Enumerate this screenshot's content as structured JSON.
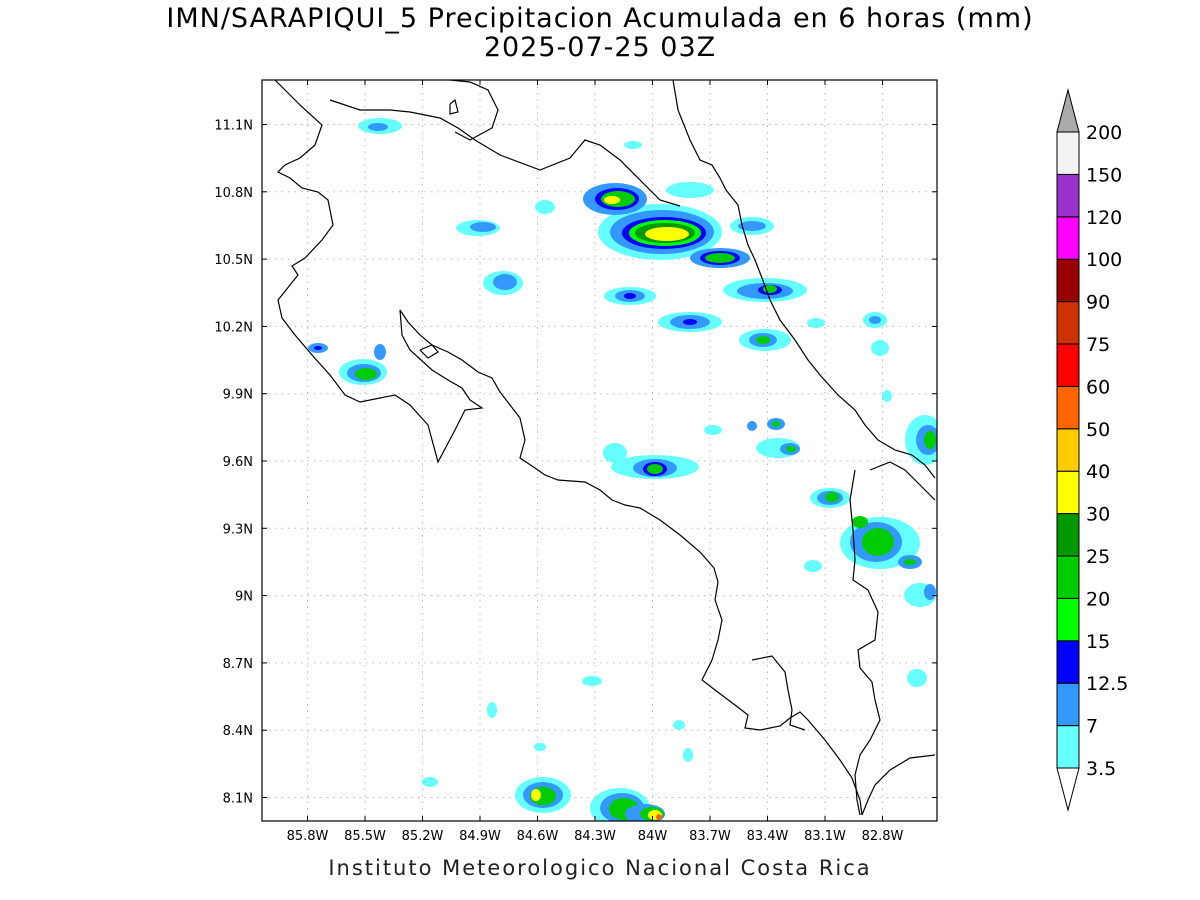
{
  "title_line1": "IMN/SARAPIQUI_5 Precipitacion Acumulada en 6 horas (mm)",
  "title_line2": "2025-07-25 03Z",
  "footer": "Instituto Meteorologico Nacional Costa Rica",
  "map": {
    "lon_range": [
      -86.0,
      -83.0
    ],
    "lat_range": [
      8.0,
      11.2
    ],
    "x_ticks": [
      "85.8W",
      "85.5W",
      "85.2W",
      "84.9W",
      "84.6W",
      "84.3W",
      "84W",
      "83.7W",
      "83.4W",
      "83.1W",
      "82.8W"
    ],
    "y_ticks": [
      "11.1N",
      "10.8N",
      "10.5N",
      "10.2N",
      "9.9N",
      "9.6N",
      "9.3N",
      "9N",
      "8.7N",
      "8.4N",
      "8.1N"
    ],
    "grid": true
  },
  "colorbar": {
    "levels": [
      "3.5",
      "7",
      "12.5",
      "15",
      "20",
      "25",
      "30",
      "40",
      "50",
      "60",
      "75",
      "90",
      "100",
      "120",
      "150",
      "200"
    ],
    "colors": [
      "#66ffff",
      "#3399ff",
      "#0000ff",
      "#00ff00",
      "#00cc00",
      "#009900",
      "#ffff00",
      "#ffcc00",
      "#ff6600",
      "#ff0000",
      "#cc3300",
      "#990000",
      "#ff00ff",
      "#9933cc",
      "#f2f2f2",
      "#aaaaaa"
    ]
  }
}
